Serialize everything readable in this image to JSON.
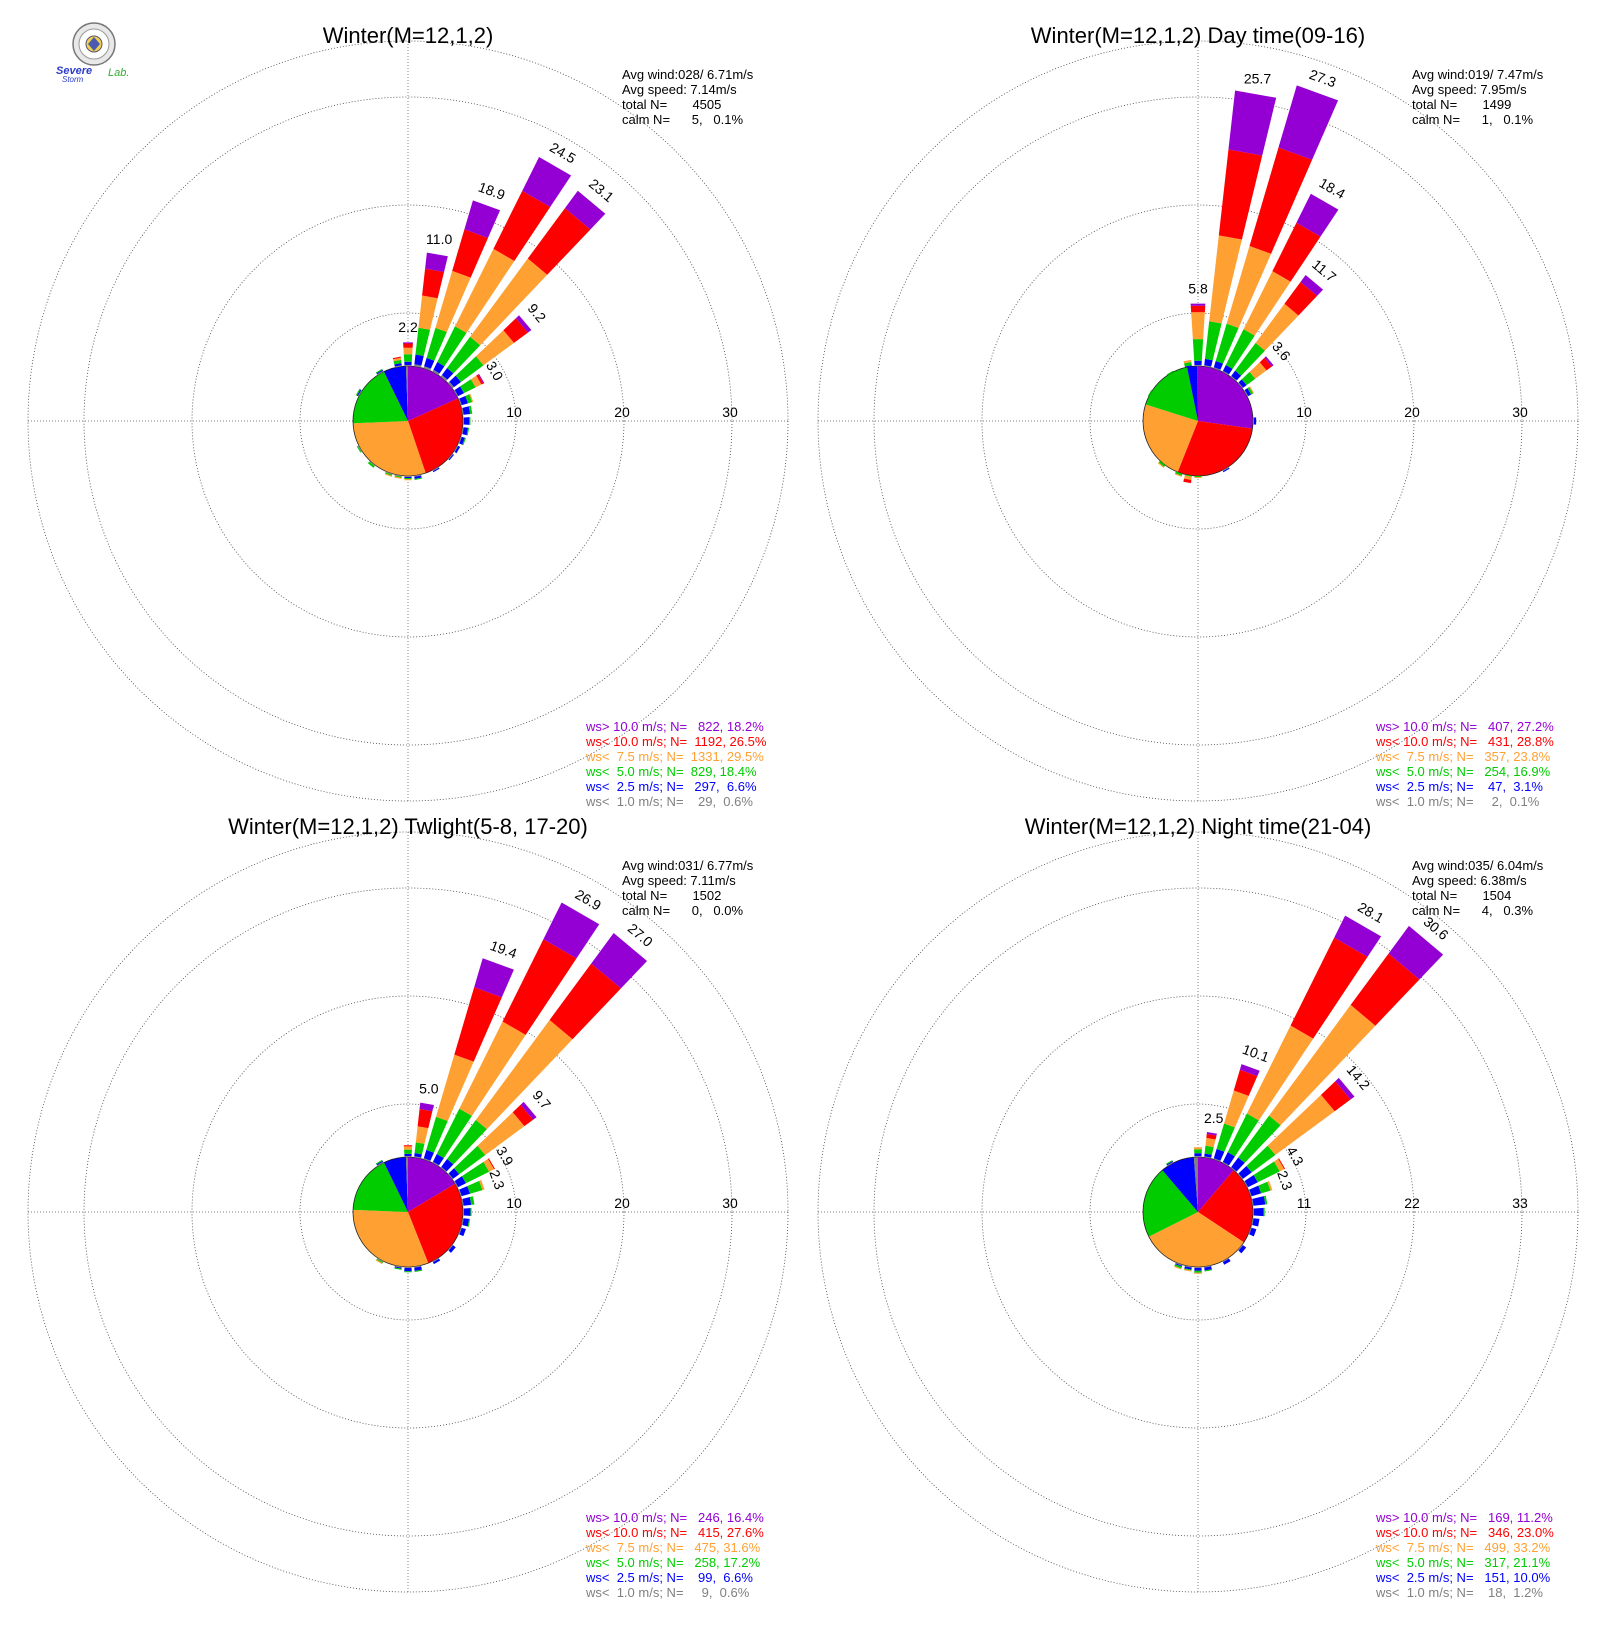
{
  "logo": {
    "text_top": "Severe",
    "text_mid": "Storm",
    "text_right": "Lab."
  },
  "colors": {
    "purple": "#9400D3",
    "red": "#FF0000",
    "orange": "#FFA033",
    "green": "#00CC00",
    "blue": "#0000FF",
    "gray": "#808080"
  },
  "chart_data": [
    {
      "type": "windrose",
      "title": "Winter(M=12,1,2)",
      "stats": [
        "Avg wind:028/ 6.71m/s",
        "Avg speed: 7.14m/s",
        "total N=       4505",
        "calm N=      5,   0.1%"
      ],
      "rings": [
        "10",
        "20",
        "30"
      ],
      "rmax": 30,
      "legend": [
        "ws> 10.0 m/s; N=   822, 18.2%",
        "ws< 10.0 m/s; N=  1192, 26.5%",
        "ws<  7.5 m/s; N=  1331, 29.5%",
        "ws<  5.0 m/s; N=  829, 18.4%",
        "ws<  2.5 m/s; N=   297,  6.6%",
        "ws<  1.0 m/s; N=    29,  0.6%"
      ],
      "pie": [
        18.2,
        26.5,
        29.5,
        18.4,
        6.6,
        0.6
      ],
      "sector_labels": [
        {
          "dir": 0,
          "label": "2.2"
        },
        {
          "dir": 10,
          "label": "11.0"
        },
        {
          "dir": 20,
          "label": "18.9"
        },
        {
          "dir": 30,
          "label": "24.5"
        },
        {
          "dir": 40,
          "label": "23.1"
        },
        {
          "dir": 50,
          "label": "9.2"
        },
        {
          "dir": 60,
          "label": "3.0"
        }
      ],
      "sectors": [
        {
          "dir": 0,
          "values": [
            0.1,
            0.4,
            0.6,
            0.7,
            0.3,
            0.1
          ]
        },
        {
          "dir": 10,
          "values": [
            1.5,
            2.5,
            3.0,
            2.5,
            0.9,
            0.2
          ]
        },
        {
          "dir": 20,
          "values": [
            2.8,
            4.0,
            5.5,
            2.9,
            0.8,
            0.2
          ]
        },
        {
          "dir": 30,
          "values": [
            3.5,
            6.0,
            8.0,
            3.7,
            0.8,
            0.2
          ]
        },
        {
          "dir": 40,
          "values": [
            2.0,
            5.8,
            9.0,
            3.6,
            0.8,
            0.2
          ]
        },
        {
          "dir": 50,
          "values": [
            0.4,
            1.6,
            3.5,
            2.6,
            0.8,
            0.2
          ]
        },
        {
          "dir": 60,
          "values": [
            0.1,
            0.2,
            0.6,
            1.2,
            0.6,
            0.1
          ]
        },
        {
          "dir": 70,
          "values": [
            0,
            0,
            0.1,
            0.4,
            0.6,
            0.1
          ]
        },
        {
          "dir": 80,
          "values": [
            0,
            0,
            0,
            0.2,
            0.6,
            0.1
          ]
        },
        {
          "dir": 90,
          "values": [
            0,
            0,
            0,
            0.1,
            0.5,
            0.1
          ]
        },
        {
          "dir": 100,
          "values": [
            0,
            0,
            0,
            0.1,
            0.4,
            0.1
          ]
        },
        {
          "dir": 110,
          "values": [
            0,
            0,
            0,
            0.1,
            0.3,
            0.1
          ]
        },
        {
          "dir": 120,
          "values": [
            0,
            0,
            0,
            0,
            0.2,
            0.1
          ]
        },
        {
          "dir": 130,
          "values": [
            0,
            0,
            0,
            0,
            0.1,
            0.1
          ]
        },
        {
          "dir": 150,
          "values": [
            0,
            0,
            0,
            0,
            0.1,
            0.1
          ]
        },
        {
          "dir": 170,
          "values": [
            0,
            0,
            0,
            0.1,
            0.2,
            0.1
          ]
        },
        {
          "dir": 180,
          "values": [
            0,
            0,
            0.1,
            0.1,
            0.1,
            0.1
          ]
        },
        {
          "dir": 190,
          "values": [
            0,
            0,
            0.1,
            0.1,
            0,
            0.1
          ]
        },
        {
          "dir": 200,
          "values": [
            0,
            0,
            0.1,
            0.1,
            0,
            0.1
          ]
        },
        {
          "dir": 220,
          "values": [
            0,
            0,
            0,
            0.2,
            0,
            0.1
          ]
        },
        {
          "dir": 240,
          "values": [
            0,
            0,
            0,
            0.1,
            0,
            0.1
          ]
        },
        {
          "dir": 300,
          "values": [
            0,
            0,
            0,
            0.1,
            0.1,
            0.1
          ]
        },
        {
          "dir": 330,
          "values": [
            0,
            0,
            0,
            0.1,
            0.1,
            0.1
          ]
        },
        {
          "dir": 350,
          "values": [
            0,
            0.1,
            0.2,
            0.3,
            0.2,
            0.1
          ]
        }
      ]
    },
    {
      "type": "windrose",
      "title": "Winter(M=12,1,2) Day time(09-16)",
      "stats": [
        "Avg wind:019/ 7.47m/s",
        "Avg speed: 7.95m/s",
        "total N=       1499",
        "calm N=      1,   0.1%"
      ],
      "rings": [
        "10",
        "20",
        "30"
      ],
      "rmax": 30,
      "legend": [
        "ws> 10.0 m/s; N=   407, 27.2%",
        "ws< 10.0 m/s; N=   431, 28.8%",
        "ws<  7.5 m/s; N=   357, 23.8%",
        "ws<  5.0 m/s; N=   254, 16.9%",
        "ws<  2.5 m/s; N=    47,  3.1%",
        "ws<  1.0 m/s; N=     2,  0.1%"
      ],
      "pie": [
        27.2,
        28.8,
        23.8,
        16.9,
        3.1,
        0.1
      ],
      "sector_labels": [
        {
          "dir": 0,
          "label": "5.8"
        },
        {
          "dir": 10,
          "label": "25.7"
        },
        {
          "dir": 20,
          "label": "27.3"
        },
        {
          "dir": 30,
          "label": "18.4"
        },
        {
          "dir": 40,
          "label": "11.7"
        },
        {
          "dir": 50,
          "label": "3.6"
        }
      ],
      "sectors": [
        {
          "dir": 0,
          "values": [
            0.2,
            0.6,
            2.5,
            2.0,
            0.4,
            0.1
          ]
        },
        {
          "dir": 10,
          "values": [
            5.5,
            8.0,
            8.0,
            3.5,
            0.6,
            0.1
          ]
        },
        {
          "dir": 20,
          "values": [
            6.0,
            9.5,
            7.5,
            3.6,
            0.6,
            0.1
          ]
        },
        {
          "dir": 30,
          "values": [
            3.0,
            5.0,
            6.0,
            3.7,
            0.6,
            0.1
          ]
        },
        {
          "dir": 40,
          "values": [
            0.8,
            2.5,
            4.5,
            3.2,
            0.6,
            0.1
          ]
        },
        {
          "dir": 50,
          "values": [
            0.2,
            0.6,
            1.3,
            1.0,
            0.4,
            0.1
          ]
        },
        {
          "dir": 60,
          "values": [
            0,
            0,
            0.1,
            0.2,
            0.3,
            0.1
          ]
        },
        {
          "dir": 90,
          "values": [
            0,
            0,
            0,
            0,
            0.2,
            0.1
          ]
        },
        {
          "dir": 150,
          "values": [
            0,
            0,
            0,
            0,
            0.1,
            0.1
          ]
        },
        {
          "dir": 180,
          "values": [
            0,
            0,
            0.1,
            0.1,
            0,
            0
          ]
        },
        {
          "dir": 190,
          "values": [
            0,
            0.3,
            0.3,
            0.1,
            0,
            0
          ]
        },
        {
          "dir": 200,
          "values": [
            0,
            0,
            0.1,
            0.2,
            0,
            0
          ]
        },
        {
          "dir": 220,
          "values": [
            0,
            0,
            0.1,
            0.2,
            0,
            0
          ]
        },
        {
          "dir": 300,
          "values": [
            0,
            0,
            0,
            0.1,
            0,
            0
          ]
        },
        {
          "dir": 330,
          "values": [
            0,
            0,
            0,
            0.1,
            0,
            0
          ]
        },
        {
          "dir": 350,
          "values": [
            0,
            0,
            0.2,
            0.3,
            0.1,
            0
          ]
        }
      ]
    },
    {
      "type": "windrose",
      "title": "Winter(M=12,1,2) Twlight(5-8, 17-20)",
      "stats": [
        "Avg wind:031/ 6.77m/s",
        "Avg speed: 7.11m/s",
        "total N=       1502",
        "calm N=      0,   0.0%"
      ],
      "rings": [
        "10",
        "20",
        "30"
      ],
      "rmax": 30,
      "legend": [
        "ws> 10.0 m/s; N=   246, 16.4%",
        "ws< 10.0 m/s; N=   415, 27.6%",
        "ws<  7.5 m/s; N=   475, 31.6%",
        "ws<  5.0 m/s; N=   258, 17.2%",
        "ws<  2.5 m/s; N=    99,  6.6%",
        "ws<  1.0 m/s; N=     9,  0.6%"
      ],
      "pie": [
        16.4,
        27.6,
        31.6,
        17.2,
        6.6,
        0.6
      ],
      "sector_labels": [
        {
          "dir": 10,
          "label": "5.0"
        },
        {
          "dir": 20,
          "label": "19.4"
        },
        {
          "dir": 30,
          "label": "26.9"
        },
        {
          "dir": 40,
          "label": "27.0"
        },
        {
          "dir": 50,
          "label": "9.7"
        },
        {
          "dir": 60,
          "label": "3.9"
        },
        {
          "dir": 70,
          "label": "2.3"
        }
      ],
      "sectors": [
        {
          "dir": 0,
          "values": [
            0,
            0.1,
            0.3,
            0.4,
            0.2,
            0.1
          ]
        },
        {
          "dir": 10,
          "values": [
            0.6,
            1.6,
            1.5,
            1.0,
            0.3,
            0.1
          ]
        },
        {
          "dir": 20,
          "values": [
            2.8,
            6.5,
            6.0,
            3.2,
            0.8,
            0.1
          ]
        },
        {
          "dir": 30,
          "values": [
            3.8,
            8.5,
            9.0,
            4.7,
            0.8,
            0.1
          ]
        },
        {
          "dir": 40,
          "values": [
            3.5,
            6.5,
            11.5,
            4.5,
            0.9,
            0.1
          ]
        },
        {
          "dir": 50,
          "values": [
            0.4,
            1.0,
            4.5,
            3.0,
            0.7,
            0.1
          ]
        },
        {
          "dir": 60,
          "values": [
            0,
            0.1,
            0.5,
            2.4,
            0.8,
            0.1
          ]
        },
        {
          "dir": 70,
          "values": [
            0,
            0,
            0.2,
            1.2,
            0.8,
            0.1
          ]
        },
        {
          "dir": 80,
          "values": [
            0,
            0,
            0,
            0.3,
            0.7,
            0.1
          ]
        },
        {
          "dir": 90,
          "values": [
            0,
            0,
            0,
            0.1,
            0.6,
            0.1
          ]
        },
        {
          "dir": 100,
          "values": [
            0,
            0,
            0,
            0.1,
            0.5,
            0.1
          ]
        },
        {
          "dir": 110,
          "values": [
            0,
            0,
            0,
            0,
            0.4,
            0.1
          ]
        },
        {
          "dir": 130,
          "values": [
            0,
            0,
            0,
            0,
            0.3,
            0.1
          ]
        },
        {
          "dir": 150,
          "values": [
            0,
            0,
            0,
            0,
            0.2,
            0.1
          ]
        },
        {
          "dir": 170,
          "values": [
            0,
            0,
            0,
            0.1,
            0.3,
            0.1
          ]
        },
        {
          "dir": 180,
          "values": [
            0,
            0,
            0,
            0.1,
            0.3,
            0.1
          ]
        },
        {
          "dir": 190,
          "values": [
            0,
            0,
            0,
            0.1,
            0.1,
            0.1
          ]
        },
        {
          "dir": 210,
          "values": [
            0,
            0,
            0.1,
            0.1,
            0,
            0.1
          ]
        },
        {
          "dir": 330,
          "values": [
            0,
            0,
            0,
            0.1,
            0.1,
            0.1
          ]
        }
      ]
    },
    {
      "type": "windrose",
      "title": "Winter(M=12,1,2) Night time(21-04)",
      "stats": [
        "Avg wind:035/ 6.04m/s",
        "Avg speed: 6.38m/s",
        "total N=       1504",
        "calm N=      4,   0.3%"
      ],
      "rings": [
        "11",
        "22",
        "33"
      ],
      "rmax": 33,
      "legend": [
        "ws> 10.0 m/s; N=   169, 11.2%",
        "ws< 10.0 m/s; N=   346, 23.0%",
        "ws<  7.5 m/s; N=   499, 33.2%",
        "ws<  5.0 m/s; N=   317, 21.1%",
        "ws<  2.5 m/s; N=   151, 10.0%",
        "ws<  1.0 m/s; N=    18,  1.2%"
      ],
      "pie": [
        11.2,
        23.0,
        33.2,
        21.1,
        10.0,
        1.2
      ],
      "sector_labels": [
        {
          "dir": 10,
          "label": "2.5"
        },
        {
          "dir": 20,
          "label": "10.1"
        },
        {
          "dir": 30,
          "label": "28.1"
        },
        {
          "dir": 40,
          "label": "30.6"
        },
        {
          "dir": 50,
          "label": "14.2"
        },
        {
          "dir": 60,
          "label": "4.3"
        },
        {
          "dir": 70,
          "label": "2.3"
        }
      ],
      "sectors": [
        {
          "dir": 0,
          "values": [
            0,
            0,
            0.2,
            0.4,
            0.3,
            0.1
          ]
        },
        {
          "dir": 10,
          "values": [
            0.2,
            0.4,
            0.8,
            0.8,
            0.3,
            0.1
          ]
        },
        {
          "dir": 20,
          "values": [
            0.6,
            2.2,
            3.5,
            2.7,
            1.0,
            0.1
          ]
        },
        {
          "dir": 30,
          "values": [
            2.5,
            10.0,
            10.0,
            4.4,
            1.1,
            0.1
          ]
        },
        {
          "dir": 40,
          "values": [
            3.5,
            6.5,
            14.0,
            5.3,
            1.2,
            0.1
          ]
        },
        {
          "dir": 50,
          "values": [
            0.5,
            2.0,
            7.5,
            3.0,
            1.1,
            0.1
          ]
        },
        {
          "dir": 60,
          "values": [
            0,
            0.1,
            0.5,
            2.5,
            1.1,
            0.1
          ]
        },
        {
          "dir": 70,
          "values": [
            0,
            0,
            0.2,
            1.0,
            1.0,
            0.1
          ]
        },
        {
          "dir": 80,
          "values": [
            0,
            0,
            0,
            0.2,
            1.2,
            0.1
          ]
        },
        {
          "dir": 90,
          "values": [
            0,
            0,
            0,
            0.1,
            1.0,
            0.1
          ]
        },
        {
          "dir": 100,
          "values": [
            0,
            0,
            0,
            0,
            0.6,
            0.1
          ]
        },
        {
          "dir": 110,
          "values": [
            0,
            0,
            0,
            0,
            0.5,
            0.1
          ]
        },
        {
          "dir": 130,
          "values": [
            0,
            0,
            0,
            0,
            0.4,
            0.1
          ]
        },
        {
          "dir": 150,
          "values": [
            0,
            0,
            0,
            0,
            0.3,
            0.1
          ]
        },
        {
          "dir": 170,
          "values": [
            0,
            0,
            0,
            0.1,
            0.3,
            0.1
          ]
        },
        {
          "dir": 180,
          "values": [
            0,
            0,
            0.1,
            0.2,
            0.3,
            0.1
          ]
        },
        {
          "dir": 190,
          "values": [
            0,
            0,
            0.1,
            0.1,
            0.2,
            0.1
          ]
        },
        {
          "dir": 200,
          "values": [
            0,
            0,
            0.1,
            0.2,
            0.1,
            0.1
          ]
        },
        {
          "dir": 330,
          "values": [
            0,
            0,
            0,
            0.1,
            0.1,
            0.1
          ]
        }
      ]
    }
  ]
}
